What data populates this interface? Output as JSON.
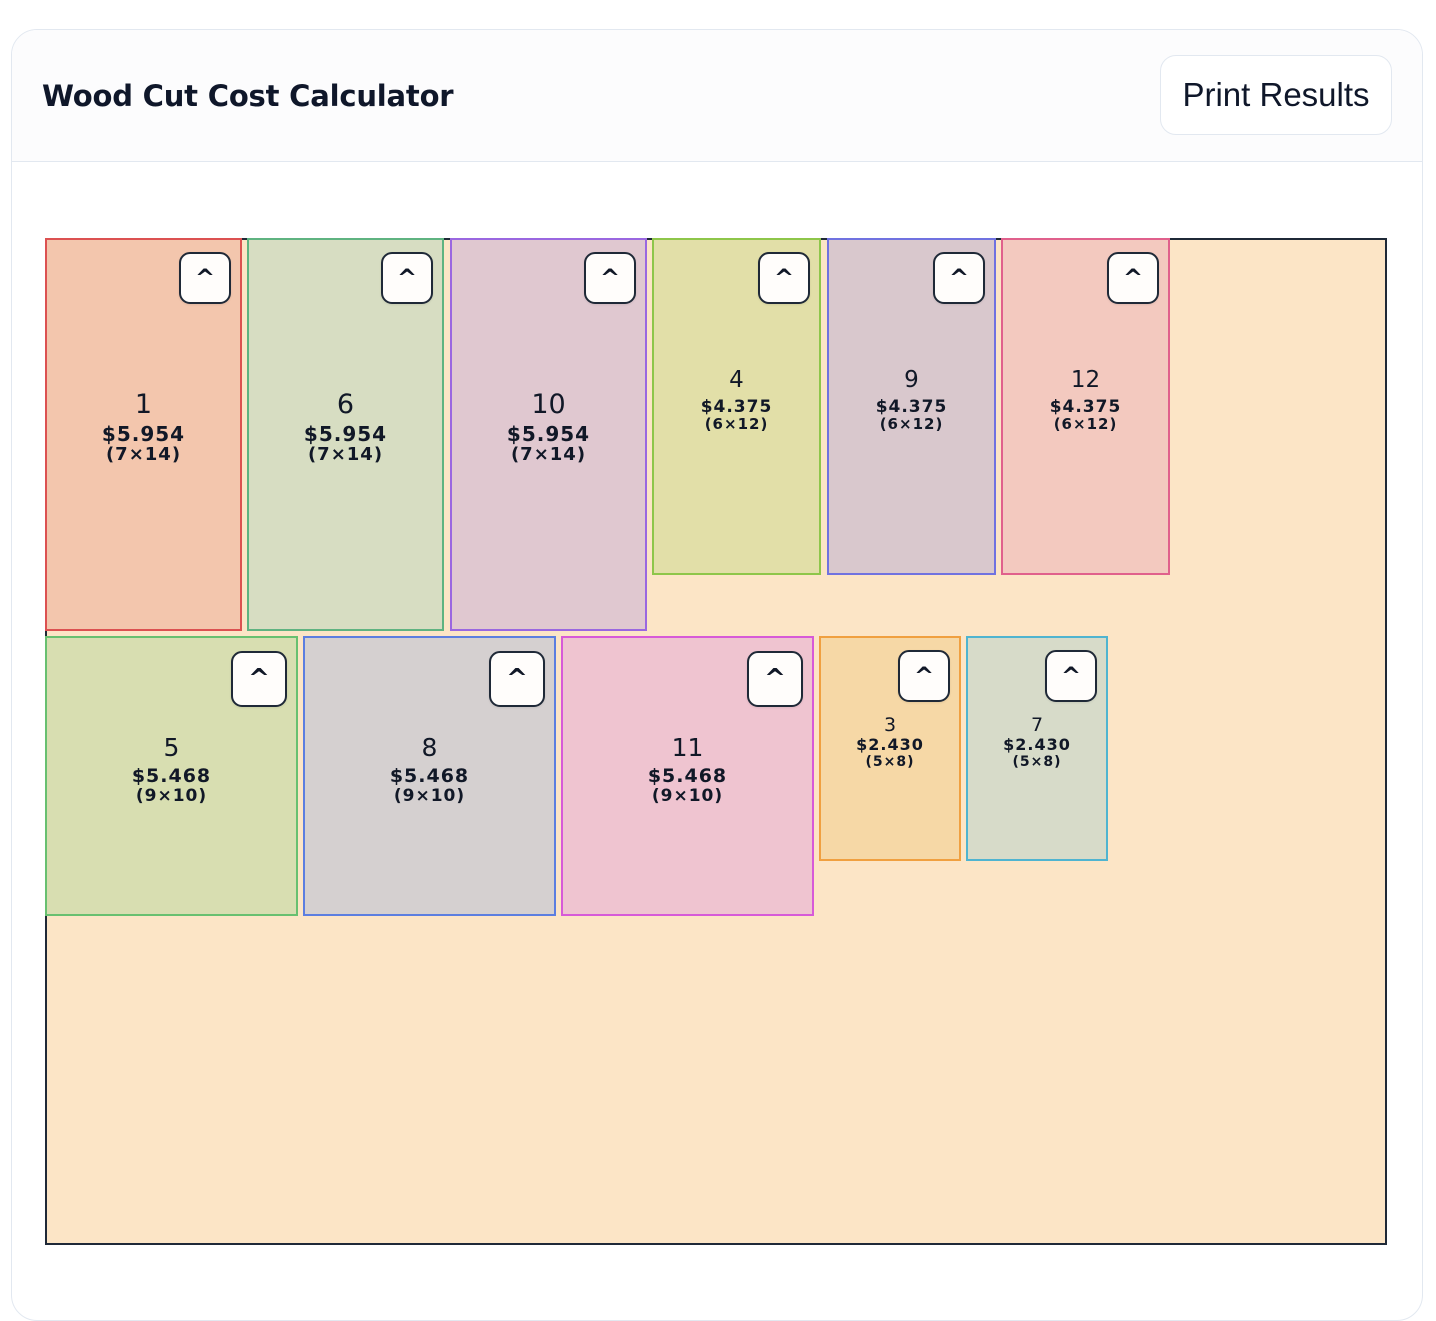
{
  "header": {
    "title": "Wood Cut Cost Calculator",
    "print_label": "Print Results"
  },
  "board": {
    "background": "#fce5c6",
    "border": "#1f2937"
  },
  "pieces": [
    {
      "id": "1",
      "price": "$5.954",
      "dims": "(7×14)",
      "bg": "#f3c6ad",
      "border": "#dc5151"
    },
    {
      "id": "6",
      "price": "$5.954",
      "dims": "(7×14)",
      "bg": "#d7ddc2",
      "border": "#5fb381"
    },
    {
      "id": "10",
      "price": "$5.954",
      "dims": "(7×14)",
      "bg": "#e0c8d0",
      "border": "#9a67e0"
    },
    {
      "id": "4",
      "price": "$4.375",
      "dims": "(6×12)",
      "bg": "#e2dfa8",
      "border": "#8ec64a"
    },
    {
      "id": "9",
      "price": "$4.375",
      "dims": "(6×12)",
      "bg": "#d9c8cd",
      "border": "#7072e0"
    },
    {
      "id": "12",
      "price": "$4.375",
      "dims": "(6×12)",
      "bg": "#f3c9bf",
      "border": "#e0608c"
    },
    {
      "id": "5",
      "price": "$5.468",
      "dims": "(9×10)",
      "bg": "#d8deb1",
      "border": "#68c070"
    },
    {
      "id": "8",
      "price": "$5.468",
      "dims": "(9×10)",
      "bg": "#d5d0d0",
      "border": "#5c7ee0"
    },
    {
      "id": "11",
      "price": "$5.468",
      "dims": "(9×10)",
      "bg": "#efc4d0",
      "border": "#d75ad8"
    },
    {
      "id": "3",
      "price": "$2.430",
      "dims": "(5×8)",
      "bg": "#f6d8a6",
      "border": "#f0a040"
    },
    {
      "id": "7",
      "price": "$2.430",
      "dims": "(5×8)",
      "bg": "#d7dbc9",
      "border": "#4fb4d0"
    }
  ],
  "rotate_label": "^"
}
